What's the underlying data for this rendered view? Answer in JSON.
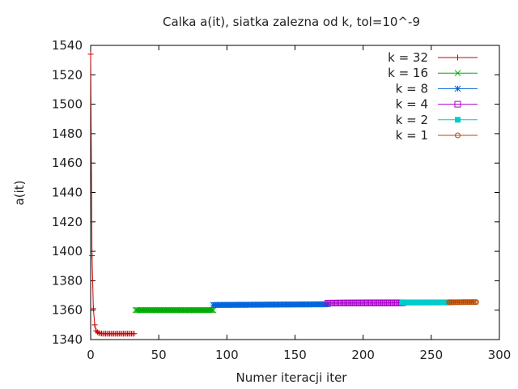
{
  "chart_data": {
    "type": "scatter",
    "title": "Calka a(it), siatka zalezna od k, tol=10^-9",
    "xlabel": "Numer iteracji iter",
    "ylabel": "a(it)",
    "xlim": [
      0,
      300
    ],
    "ylim": [
      1340,
      1540
    ],
    "xticks": [
      0,
      50,
      100,
      150,
      200,
      250,
      300
    ],
    "yticks": [
      1340,
      1360,
      1380,
      1400,
      1420,
      1440,
      1460,
      1480,
      1500,
      1520,
      1540
    ],
    "grid": false,
    "legend_position": "top-right",
    "series": [
      {
        "name": "k = 32",
        "color": "#cc0000",
        "marker": "plus",
        "x": [
          0,
          1,
          2,
          3,
          4,
          5,
          6,
          7,
          8,
          9,
          10,
          11,
          12,
          13,
          14,
          15,
          16,
          17,
          18,
          19,
          20,
          21,
          22,
          23,
          24,
          25,
          26,
          27,
          28,
          29,
          30,
          31,
          32
        ],
        "values": [
          1534,
          1397,
          1361,
          1350,
          1346,
          1345,
          1344.5,
          1344.2,
          1344.1,
          1344,
          1344,
          1344,
          1344,
          1344,
          1344,
          1344,
          1344,
          1344,
          1344,
          1344,
          1344,
          1344,
          1344,
          1344,
          1344,
          1344,
          1344,
          1344,
          1344,
          1344,
          1344,
          1344,
          1344
        ]
      },
      {
        "name": "k = 16",
        "color": "#00aa00",
        "marker": "cross",
        "x_range": [
          33,
          90
        ],
        "y_start": 1360,
        "y_end": 1360
      },
      {
        "name": "k = 8",
        "color": "#0066dd",
        "marker": "star",
        "x_range": [
          90,
          174
        ],
        "y_start": 1363.5,
        "y_end": 1364
      },
      {
        "name": "k = 4",
        "color": "#aa00cc",
        "marker": "open-square",
        "x_range": [
          174,
          229
        ],
        "y_start": 1364.8,
        "y_end": 1365
      },
      {
        "name": "k = 2",
        "color": "#00cccc",
        "marker": "filled-square",
        "x_range": [
          229,
          263
        ],
        "y_start": 1365.2,
        "y_end": 1365.3
      },
      {
        "name": "k = 1",
        "color": "#b84a00",
        "marker": "open-circle",
        "x_range": [
          263,
          283
        ],
        "y_start": 1365.4,
        "y_end": 1365.5
      }
    ]
  }
}
